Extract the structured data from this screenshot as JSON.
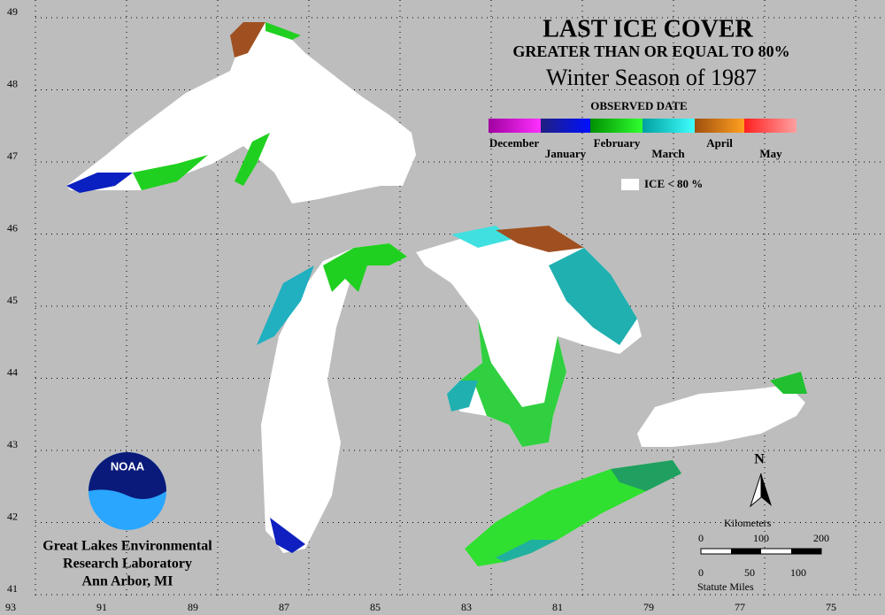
{
  "header": {
    "title": "LAST ICE COVER",
    "subtitle": "GREATER THAN OR EQUAL TO 80%",
    "season": "Winter Season of 1987"
  },
  "legend": {
    "title": "OBSERVED DATE",
    "months": [
      "December",
      "January",
      "February",
      "March",
      "April",
      "May"
    ],
    "ice_label": "ICE < 80 %"
  },
  "grid": {
    "longitudes": [
      93,
      91,
      89,
      87,
      85,
      83,
      81,
      79,
      77,
      75
    ],
    "latitudes": [
      49,
      48,
      47,
      46,
      45,
      44,
      43,
      42,
      41
    ]
  },
  "north": "N",
  "scale": {
    "km_title": "Kilometers",
    "km_ticks": [
      "0",
      "100",
      "200"
    ],
    "mi_ticks": [
      "0",
      "50",
      "100"
    ],
    "mi_title": "Statute Miles"
  },
  "logo": "NOAA",
  "credit": [
    "Great Lakes Environmental",
    "Research Laboratory",
    "Ann Arbor, MI"
  ]
}
